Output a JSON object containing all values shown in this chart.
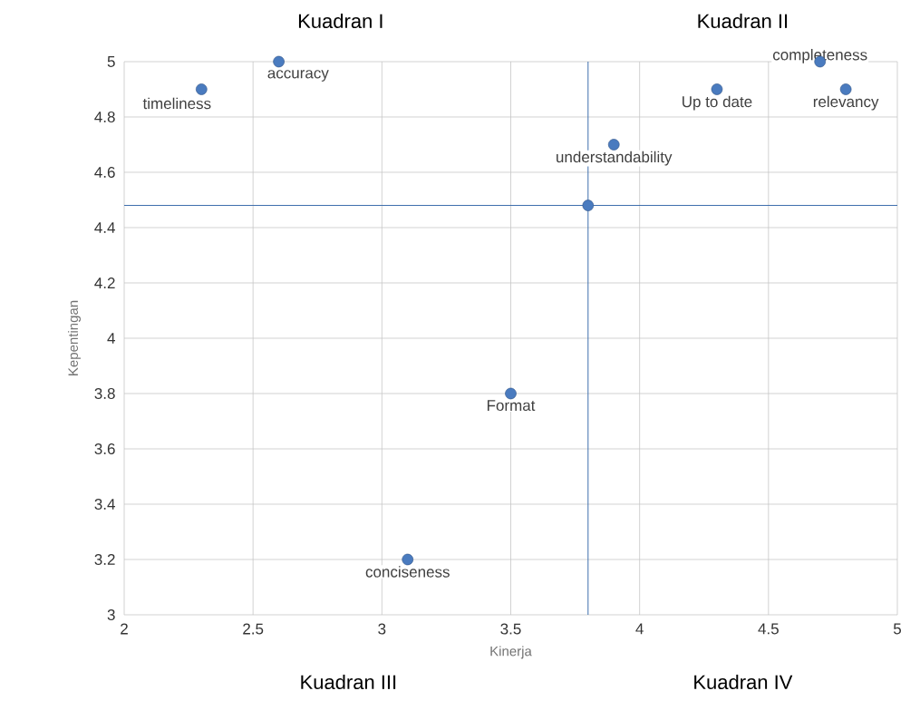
{
  "chart_data": {
    "type": "scatter",
    "xlabel": "Kinerja",
    "ylabel": "Kepentingan",
    "x": [
      2.3,
      2.6,
      3.9,
      3.8,
      4.3,
      4.7,
      4.8,
      3.5,
      3.1
    ],
    "values": [
      4.9,
      5.0,
      4.7,
      4.48,
      4.9,
      5.0,
      4.9,
      3.8,
      3.2
    ],
    "color": "#4a7bbf",
    "marker": "circle",
    "grid": true,
    "xlim": [
      2,
      5
    ],
    "ylim": [
      3,
      5
    ],
    "xticks": [
      2,
      2.5,
      3,
      3.5,
      4,
      4.5,
      5
    ],
    "yticks": [
      3,
      3.2,
      3.4,
      3.6,
      3.8,
      4,
      4.2,
      4.4,
      4.6,
      4.8,
      5
    ],
    "ref_lines": [
      {
        "axis": "x",
        "value": 3.8,
        "color": "#3f6fad"
      },
      {
        "axis": "y",
        "value": 4.48,
        "color": "#3f6fad"
      }
    ],
    "annotations": [
      "Kuadran I",
      "Kuadran II",
      "Kuadran III",
      "Kuadran IV",
      {
        "text": "timeliness",
        "x": 2.3,
        "y": 4.9
      },
      {
        "text": "accuracy",
        "x": 2.6,
        "y": 5.0
      },
      {
        "text": "understandability",
        "x": 3.9,
        "y": 4.7
      },
      {
        "text": "Up to date",
        "x": 4.3,
        "y": 4.9
      },
      {
        "text": "completeness",
        "x": 4.7,
        "y": 5.0
      },
      {
        "text": "relevancy",
        "x": 4.8,
        "y": 4.9
      },
      {
        "text": "Format",
        "x": 3.5,
        "y": 3.8
      },
      {
        "text": "conciseness",
        "x": 3.1,
        "y": 3.2
      }
    ]
  }
}
